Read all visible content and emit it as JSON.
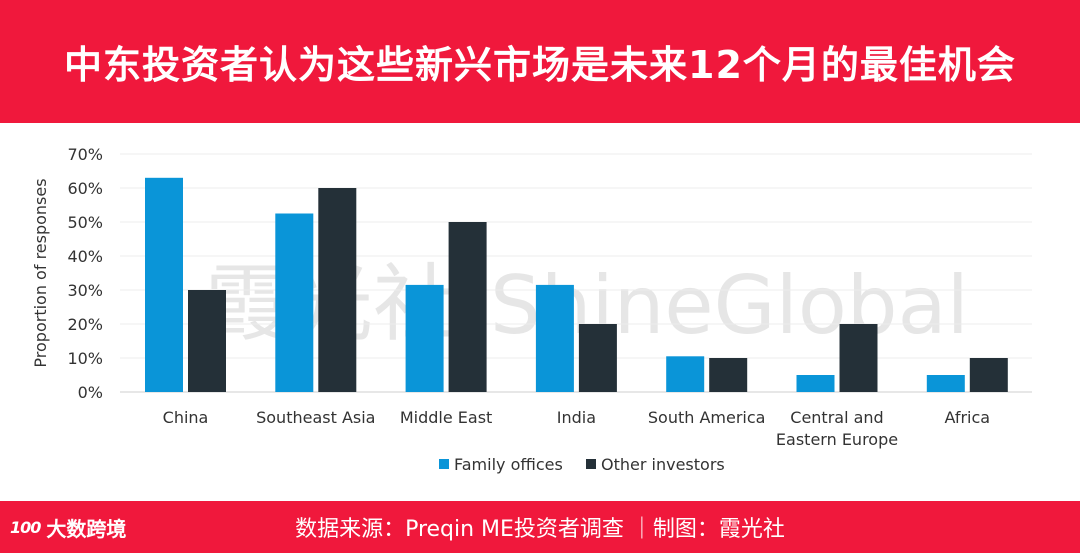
{
  "header": {
    "title": "中东投资者认为这些新兴市场是未来12个月的最佳机会"
  },
  "footer": {
    "source": "数据来源：Preqin ME投资者调查 ｜制图：霞光社",
    "logo_mark": "100",
    "logo_text": "大数跨境"
  },
  "watermark": {
    "text_cn": "霞光社",
    "text_en": "ShineGlobal"
  },
  "colors": {
    "brand": "#f0183c",
    "family": "#0a95d8",
    "other": "#243038"
  },
  "chart_data": {
    "type": "bar",
    "title": "",
    "xlabel": "",
    "ylabel": "Proportion of responses",
    "ylim": [
      0,
      70
    ],
    "yticks": [
      "0%",
      "10%",
      "20%",
      "30%",
      "40%",
      "50%",
      "60%",
      "70%"
    ],
    "categories": [
      "China",
      "Southeast Asia",
      "Middle East",
      "India",
      "South America",
      "Central and\nEastern Europe",
      "Africa"
    ],
    "series": [
      {
        "name": "Family offices",
        "values": [
          63,
          52.5,
          31.5,
          31.5,
          10.5,
          5,
          5
        ]
      },
      {
        "name": "Other investors",
        "values": [
          30,
          60,
          50,
          20,
          10,
          20,
          10
        ]
      }
    ],
    "legend_position": "bottom-center",
    "grid": true
  }
}
